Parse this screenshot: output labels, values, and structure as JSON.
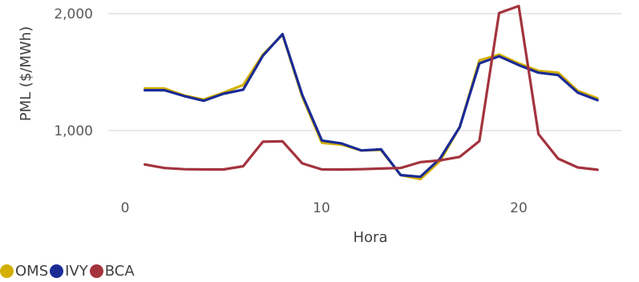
{
  "chart_data": {
    "type": "line",
    "xlabel": "Hora",
    "ylabel": "PML ($/MWh)",
    "xlim": [
      0,
      25
    ],
    "ylim": [
      450,
      2100
    ],
    "x_ticks": [
      0,
      10,
      20
    ],
    "x_tick_labels": [
      "0",
      "10",
      "20"
    ],
    "y_ticks": [
      1000,
      2000
    ],
    "y_tick_labels": [
      "1,000",
      "2,000"
    ],
    "grid": "horizontal",
    "legend_position": "bottom-left",
    "x": [
      1,
      2,
      3,
      4,
      5,
      6,
      7,
      8,
      9,
      10,
      11,
      12,
      13,
      14,
      15,
      16,
      17,
      18,
      19,
      20,
      21,
      22,
      23,
      24
    ],
    "series": [
      {
        "name": "OMS",
        "color": "#D4AF00",
        "values": [
          1360,
          1360,
          1300,
          1265,
          1325,
          1390,
          1650,
          1820,
          1290,
          895,
          880,
          830,
          835,
          620,
          585,
          740,
          1030,
          1600,
          1650,
          1575,
          1510,
          1495,
          1340,
          1275
        ]
      },
      {
        "name": "IVY",
        "color": "#1A2B96",
        "values": [
          1345,
          1345,
          1295,
          1255,
          1315,
          1350,
          1640,
          1825,
          1305,
          915,
          890,
          830,
          840,
          620,
          605,
          760,
          1030,
          1575,
          1635,
          1560,
          1495,
          1475,
          1325,
          1260
        ]
      },
      {
        "name": "BCA",
        "color": "#A3333D",
        "values": [
          710,
          680,
          670,
          668,
          668,
          695,
          905,
          908,
          720,
          668,
          667,
          670,
          675,
          680,
          730,
          745,
          775,
          910,
          2005,
          2065,
          970,
          760,
          685,
          665
        ]
      }
    ]
  }
}
